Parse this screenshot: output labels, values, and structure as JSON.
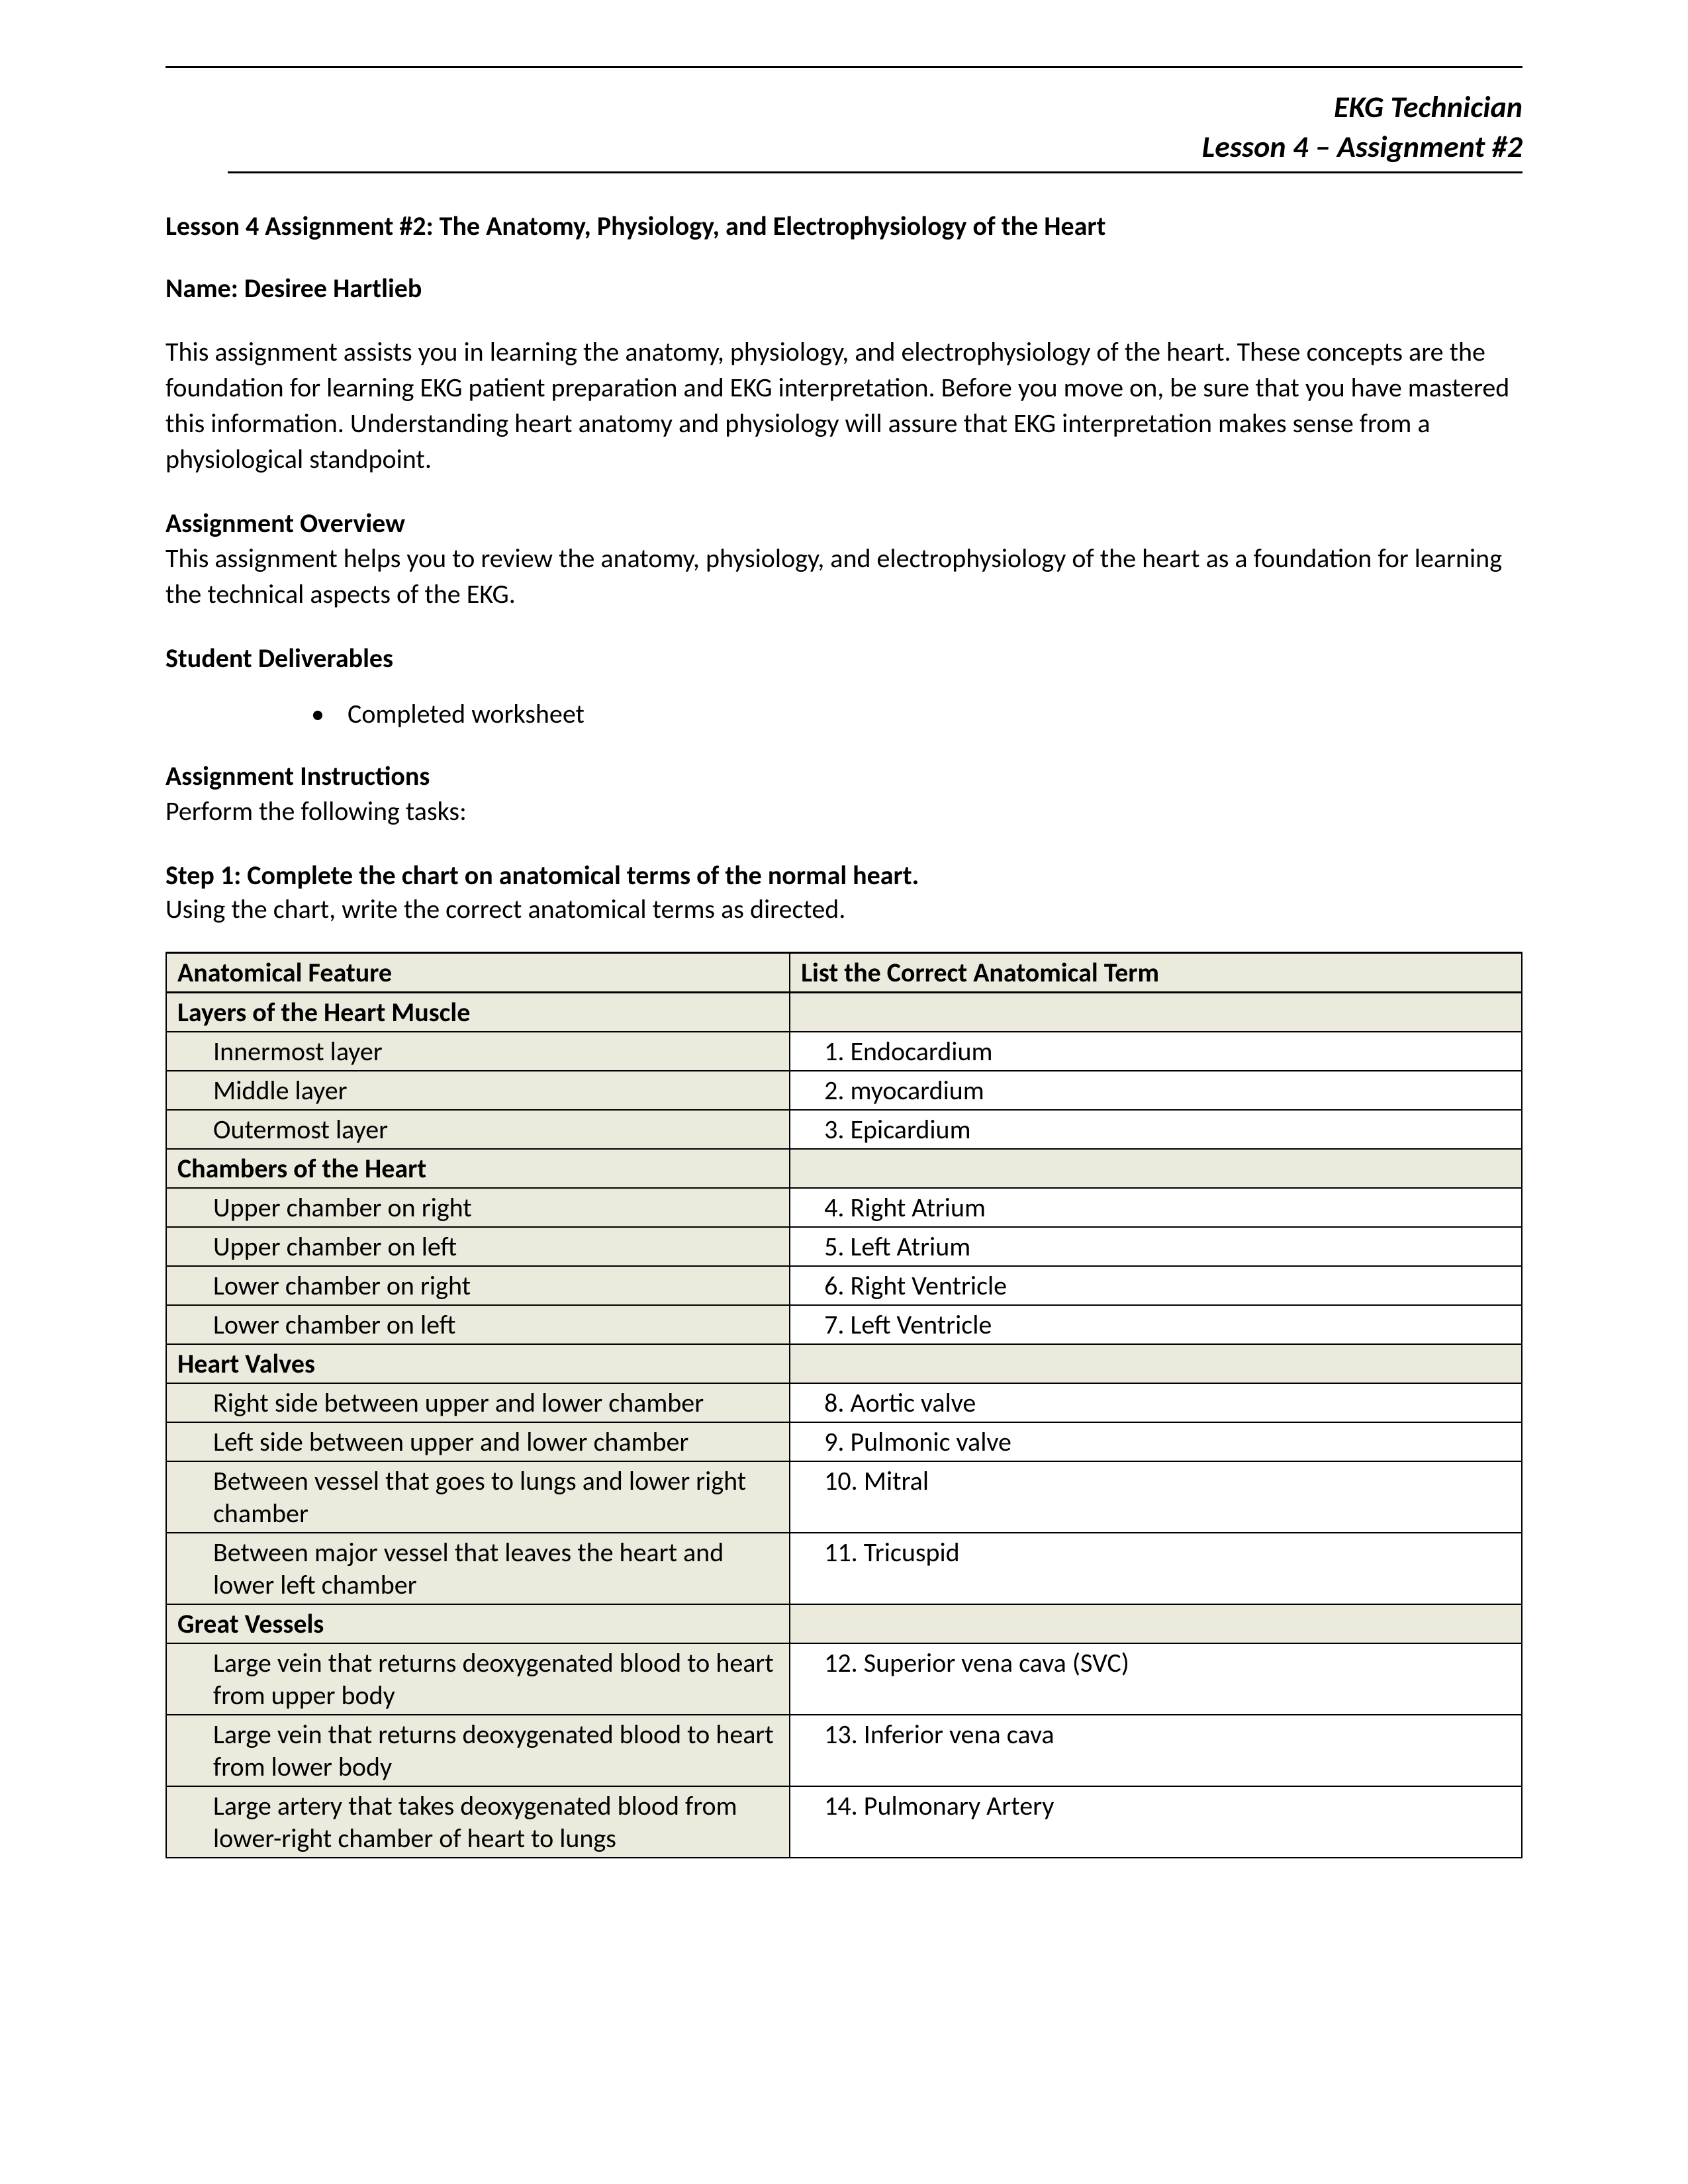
{
  "header": {
    "course": "EKG Technician",
    "lesson": "Lesson 4 – Assignment #2"
  },
  "title": "Lesson 4 Assignment #2: The Anatomy, Physiology, and Electrophysiology of the Heart",
  "name_label": "Name: Desiree Hartlieb",
  "intro_text": "This assignment assists you in learning the anatomy, physiology, and electrophysiology of the heart. These concepts are the foundation for learning EKG patient preparation and EKG interpretation. Before you move on, be sure that you have mastered this information. Understanding heart anatomy and physiology will assure that EKG interpretation makes sense from a physiological standpoint.",
  "overview": {
    "heading": "Assignment Overview",
    "text": "This assignment helps you to review the anatomy, physiology, and electrophysiology of the heart as a foundation for learning the technical aspects of the EKG."
  },
  "deliverables": {
    "heading": "Student Deliverables",
    "item": "Completed worksheet"
  },
  "instructions": {
    "heading": "Assignment Instructions",
    "text": "Perform the following tasks:"
  },
  "step1": {
    "heading": "Step 1: Complete the chart on anatomical terms of the normal heart.",
    "text": "Using the chart, write the correct anatomical terms as directed."
  },
  "table": {
    "columns": {
      "feature": "Anatomical Feature",
      "term": "List the Correct Anatomical Term"
    },
    "colors": {
      "shaded_bg": "#eceadd",
      "border": "#000000"
    },
    "rows": [
      {
        "type": "section",
        "feature": "Layers of the Heart Muscle"
      },
      {
        "type": "item",
        "feature": "Innermost layer",
        "num": "1.",
        "term": "Endocardium"
      },
      {
        "type": "item",
        "feature": "Middle layer",
        "num": "2.",
        "term": "myocardium"
      },
      {
        "type": "item",
        "feature": "Outermost layer",
        "num": "3.",
        "term": "Epicardium"
      },
      {
        "type": "section",
        "feature": "Chambers of the Heart"
      },
      {
        "type": "item",
        "feature": "Upper chamber on right",
        "num": "4.",
        "term": "Right Atrium"
      },
      {
        "type": "item",
        "feature": "Upper chamber on left",
        "num": "5.",
        "term": "Left Atrium"
      },
      {
        "type": "item",
        "feature": "Lower chamber on right",
        "num": "6.",
        "term": "Right Ventricle"
      },
      {
        "type": "item",
        "feature": "Lower chamber on left",
        "num": "7.",
        "term": "Left Ventricle"
      },
      {
        "type": "section",
        "feature": "Heart Valves"
      },
      {
        "type": "item",
        "feature": "Right side between upper and lower chamber",
        "num": "8.",
        "term": "Aortic valve"
      },
      {
        "type": "item",
        "feature": "Left side between upper and lower chamber",
        "num": "9.",
        "term": "Pulmonic valve"
      },
      {
        "type": "item",
        "feature": "Between vessel that goes to lungs and lower right chamber",
        "num": "10.",
        "term": "Mitral"
      },
      {
        "type": "item",
        "feature": "Between major vessel that leaves the heart and lower left chamber",
        "num": "11.",
        "term": "Tricuspid"
      },
      {
        "type": "section",
        "feature": "Great Vessels"
      },
      {
        "type": "item",
        "feature": "Large vein that returns deoxygenated blood to heart from upper body",
        "num": "12.",
        "term": "Superior vena cava (SVC)"
      },
      {
        "type": "item",
        "feature": "Large vein that returns deoxygenated blood to heart from lower body",
        "num": "13.",
        "term": "Inferior vena cava"
      },
      {
        "type": "item",
        "feature": "Large artery that takes deoxygenated blood from lower-right chamber of heart to lungs",
        "num": "14.",
        "term": " Pulmonary Artery"
      }
    ]
  }
}
